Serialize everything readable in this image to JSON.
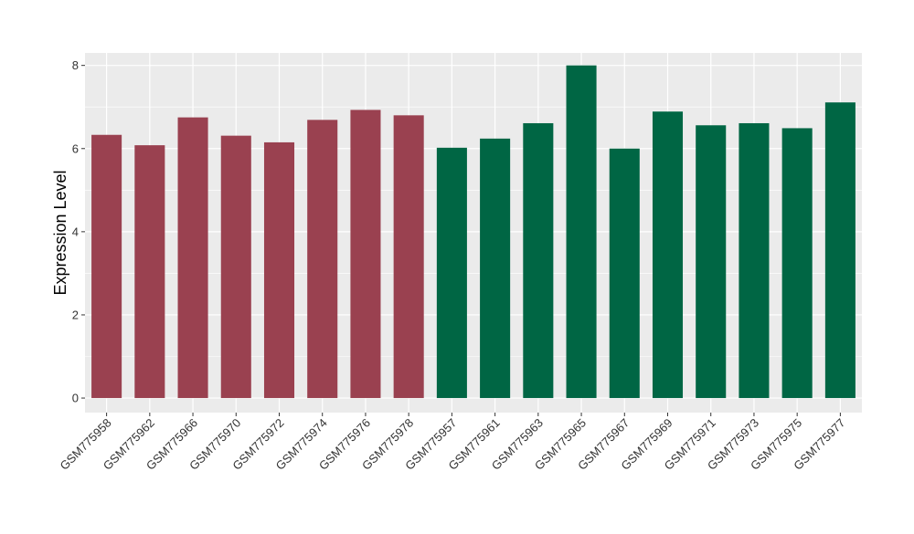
{
  "chart_data": {
    "type": "bar",
    "title": "",
    "xlabel": "",
    "ylabel": "Expression Level",
    "ylim": [
      -0.35,
      8.3
    ],
    "yticks": [
      0,
      2,
      4,
      6,
      8
    ],
    "grid": true,
    "legend": "none",
    "categories": [
      "GSM775958",
      "GSM775962",
      "GSM775966",
      "GSM775970",
      "GSM775972",
      "GSM775974",
      "GSM775976",
      "GSM775978",
      "GSM775957",
      "GSM775961",
      "GSM775963",
      "GSM775965",
      "GSM775967",
      "GSM775969",
      "GSM775971",
      "GSM775973",
      "GSM775975",
      "GSM775977"
    ],
    "values": [
      6.33,
      6.08,
      6.75,
      6.31,
      6.15,
      6.69,
      6.93,
      6.8,
      6.02,
      6.24,
      6.61,
      8.0,
      6.0,
      6.89,
      6.56,
      6.61,
      6.49,
      7.11
    ],
    "bar_colors": [
      "#9a4150",
      "#9a4150",
      "#9a4150",
      "#9a4150",
      "#9a4150",
      "#9a4150",
      "#9a4150",
      "#9a4150",
      "#006644",
      "#006644",
      "#006644",
      "#006644",
      "#006644",
      "#006644",
      "#006644",
      "#006644",
      "#006644",
      "#006644"
    ]
  }
}
